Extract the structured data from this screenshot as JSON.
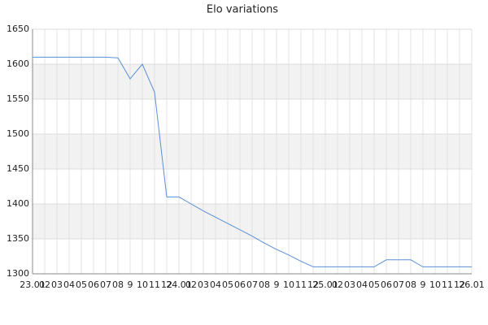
{
  "chart_data": {
    "type": "line",
    "title": "Elo variations",
    "categories": [
      "23.01",
      "02",
      "03",
      "04",
      "05",
      "06",
      "07",
      "08",
      "9",
      "10",
      "11",
      "12",
      "24.01",
      "02",
      "03",
      "04",
      "05",
      "06",
      "07",
      "08",
      "9",
      "10",
      "11",
      "12",
      "25.01",
      "02",
      "03",
      "04",
      "05",
      "06",
      "07",
      "08",
      "9",
      "10",
      "11",
      "12",
      "26.01"
    ],
    "series": [
      {
        "name": "Elo",
        "color": "#5b8fd6",
        "values": [
          1610,
          1610,
          1610,
          1610,
          1610,
          1610,
          1610,
          1609,
          1579,
          1600,
          1560,
          1410,
          1410,
          1400,
          1390,
          1381,
          1372,
          1363,
          1354,
          1344,
          1335,
          1327,
          1318,
          1310,
          1310,
          1310,
          1310,
          1310,
          1310,
          1320,
          1320,
          1320,
          1310,
          1310,
          1310,
          1310,
          1310
        ]
      }
    ],
    "ylim": [
      1300,
      1650
    ],
    "yticks": [
      1300,
      1350,
      1400,
      1450,
      1500,
      1550,
      1600,
      1650
    ],
    "grid": true
  }
}
